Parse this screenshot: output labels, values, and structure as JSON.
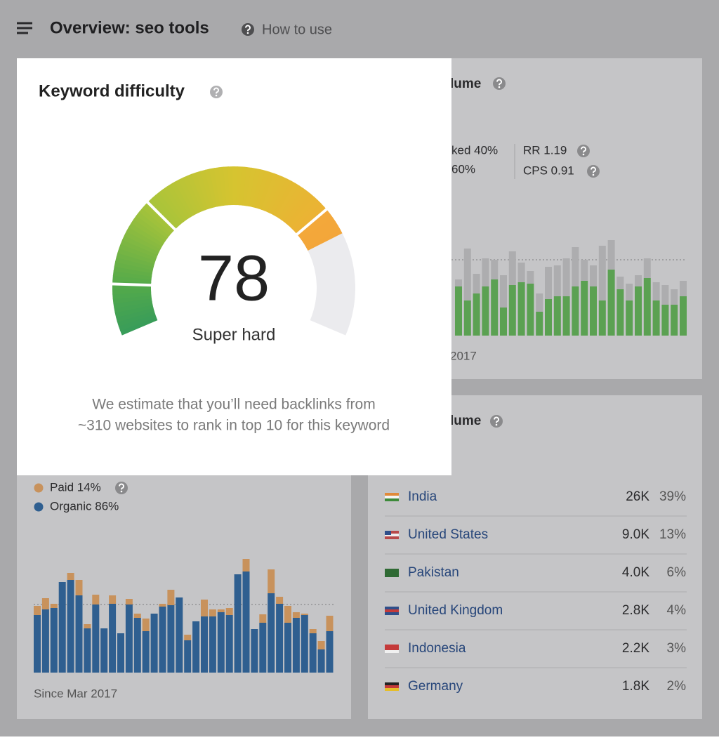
{
  "header": {
    "title": "Overview: seo tools",
    "help_link": "How to use"
  },
  "popup": {
    "title": "Keyword difficulty",
    "gauge": {
      "value": 78,
      "range": [
        0,
        100
      ],
      "label": "Super hard"
    },
    "description": [
      "We estimate that you’ll need backlinks from",
      "~310 websites to rank in top 10 for this keyword"
    ]
  },
  "volume_card": {
    "title_fragment": "lume",
    "stats": [
      "ked 40%",
      "60%",
      "RR 1.19",
      "CPS 0.91"
    ],
    "chart": {
      "type": "bar",
      "ylim": [
        0,
        160
      ],
      "series": [
        {
          "color": "#5ba152",
          "values": [
            70,
            50,
            60,
            70,
            80,
            40,
            72,
            76,
            74,
            34,
            52,
            56,
            56,
            70,
            78,
            70,
            50,
            94,
            66,
            50,
            70,
            82,
            50,
            44,
            44,
            56
          ]
        },
        {
          "color": "#adadaf",
          "values": [
            10,
            74,
            28,
            40,
            28,
            46,
            48,
            28,
            18,
            26,
            46,
            44,
            54,
            56,
            30,
            30,
            78,
            42,
            18,
            24,
            16,
            28,
            26,
            28,
            22,
            22
          ]
        }
      ]
    },
    "caption_fragment": "2017"
  },
  "clicks_card": {
    "legend": [
      "Paid 14%",
      "Organic 86%"
    ],
    "chart": {
      "type": "bar",
      "ylim": [
        0,
        180
      ],
      "series": [
        {
          "color": "#2f5f90",
          "values": [
            82,
            90,
            92,
            129,
            132,
            110,
            63,
            97,
            63,
            98,
            56,
            97,
            78,
            59,
            84,
            94,
            96,
            107,
            46,
            73,
            80,
            80,
            86,
            82,
            140,
            144,
            62,
            71,
            113,
            98,
            71,
            78,
            82,
            56,
            33,
            59
          ]
        },
        {
          "color": "#c8925c",
          "values": [
            13,
            16,
            6,
            0,
            10,
            22,
            6,
            14,
            0,
            12,
            0,
            8,
            6,
            18,
            0,
            4,
            22,
            0,
            8,
            0,
            24,
            10,
            4,
            10,
            0,
            18,
            0,
            12,
            34,
            10,
            24,
            8,
            2,
            6,
            12,
            22
          ]
        }
      ]
    },
    "caption": "Since Mar 2017"
  },
  "global_card": {
    "title_fragment": "lume",
    "countries": [
      {
        "name": "India",
        "volume": "26K",
        "share": "39%"
      },
      {
        "name": "United States",
        "volume": "9.0K",
        "share": "13%"
      },
      {
        "name": "Pakistan",
        "volume": "4.0K",
        "share": "6%"
      },
      {
        "name": "United Kingdom",
        "volume": "2.8K",
        "share": "4%"
      },
      {
        "name": "Indonesia",
        "volume": "2.2K",
        "share": "3%"
      },
      {
        "name": "Germany",
        "volume": "1.8K",
        "share": "2%"
      }
    ]
  }
}
